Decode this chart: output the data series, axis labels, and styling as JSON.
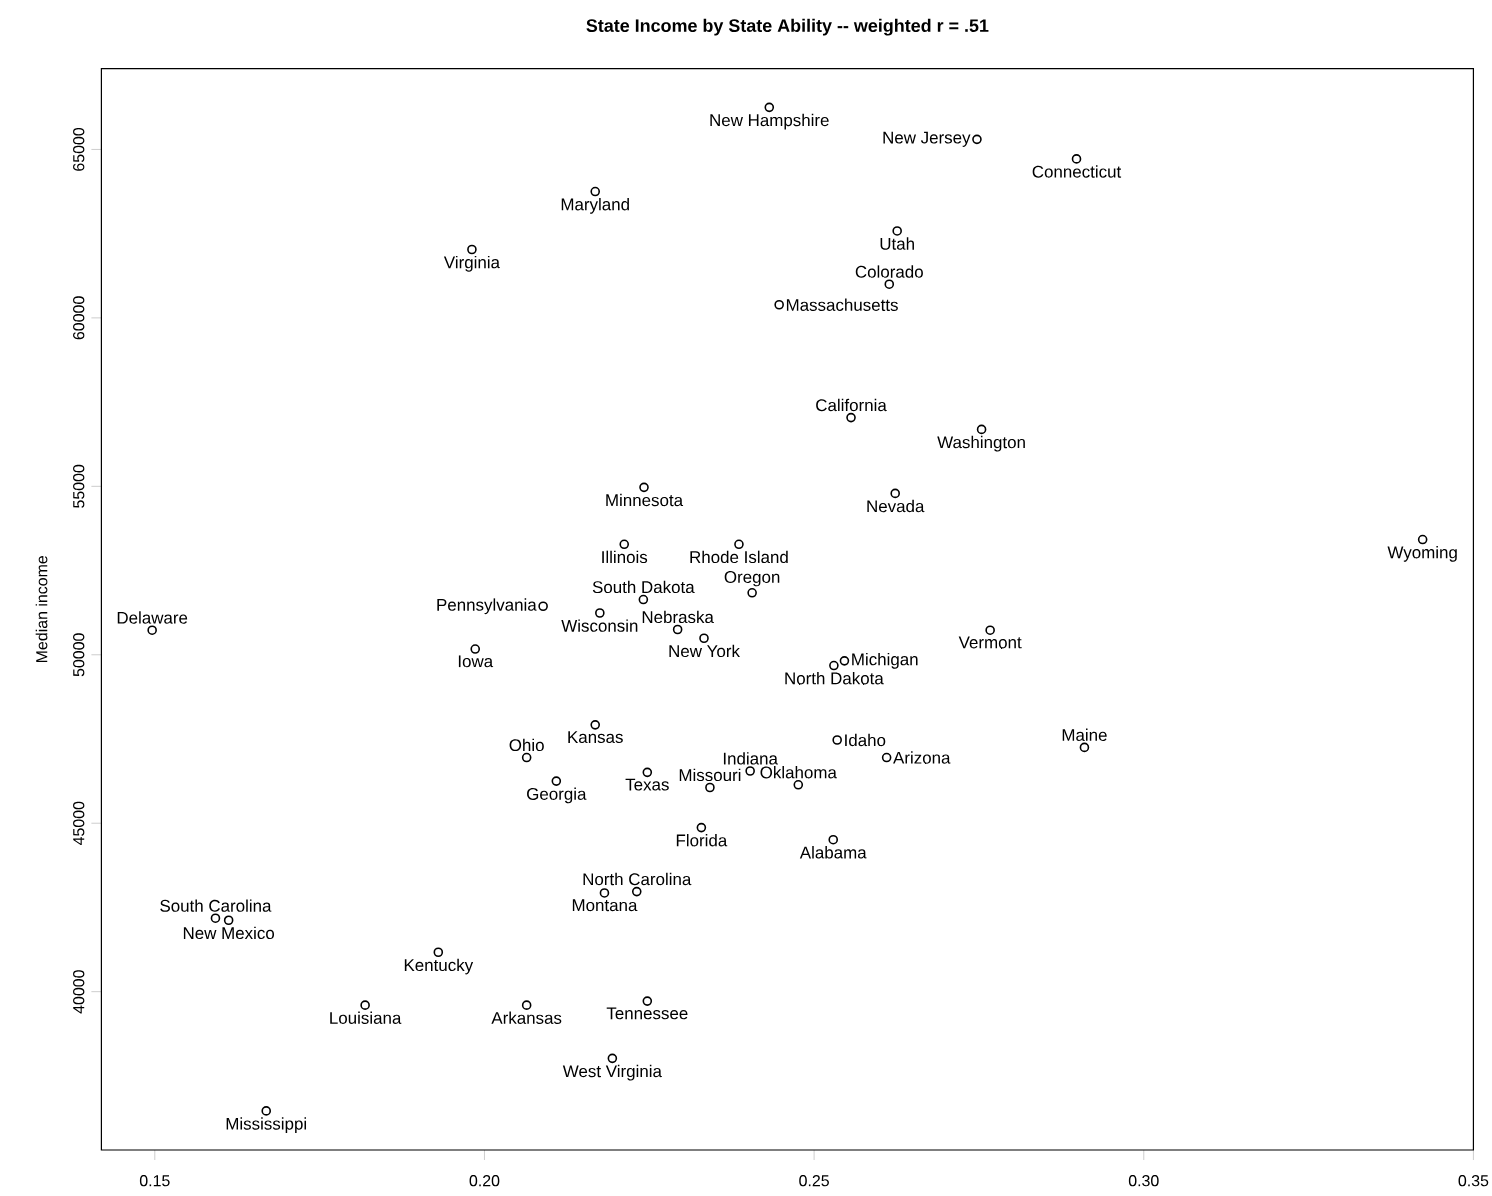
{
  "chart_data": {
    "type": "scatter",
    "title": "State Income by State Ability -- weighted r = .51",
    "ylabel": "Median income",
    "xlim": [
      0.1419,
      0.35
    ],
    "ylim": [
      35300,
      67400
    ],
    "xticks": [
      0.15,
      {
        "value": 0.2,
        "label": "0.20"
      },
      0.25,
      {
        "value": 0.3,
        "label": "0.30"
      },
      0.35
    ],
    "yticks": [
      40000,
      45000,
      50000,
      55000,
      60000,
      65000
    ],
    "marker": "circle",
    "series": [
      {
        "color": "#000000",
        "x": [
          0.2168,
          0.1981,
          0.2242,
          0.2212,
          0.2386,
          0.2241,
          0.2089,
          0.1496,
          0.2175,
          0.2293,
          0.2333,
          0.1986,
          0.2064,
          0.2168,
          0.2109,
          0.2247,
          0.2342,
          0.2403,
          0.2476,
          0.2329,
          0.2231,
          0.2182,
          0.1592,
          0.1612,
          0.193,
          0.1819,
          0.2064,
          0.2247,
          0.2194,
          0.1669,
          0.2767,
          0.2546,
          0.253,
          0.2535,
          0.261,
          0.291,
          0.2529,
          0.2432,
          0.2747,
          0.2898,
          0.2626,
          0.2614,
          0.2447,
          0.2556,
          0.2754,
          0.2623,
          0.3423,
          0.2406
        ],
        "values": [
          63750,
          62030,
          54970,
          53280,
          53280,
          51640,
          51440,
          50730,
          51240,
          50750,
          50490,
          50170,
          46950,
          47920,
          46250,
          46510,
          46060,
          46550,
          46140,
          44870,
          42970,
          42930,
          42180,
          42120,
          41170,
          39600,
          39600,
          39720,
          38020,
          36460,
          50730,
          49820,
          49680,
          47470,
          46950,
          47250,
          44510,
          66250,
          65300,
          64720,
          62580,
          61000,
          60390,
          57040,
          56690,
          54790,
          53420,
          51840
        ]
      }
    ],
    "annotations": [
      {
        "text": "Maryland",
        "x": 0.2168,
        "y": 63750
      },
      {
        "text": "Virginia",
        "x": 0.1981,
        "y": 62030
      },
      {
        "text": "Minnesota",
        "x": 0.2242,
        "y": 54970
      },
      {
        "text": "Illinois",
        "x": 0.2212,
        "y": 53280
      },
      {
        "text": "Rhode Island",
        "x": 0.2386,
        "y": 53280
      },
      {
        "text": "South Dakota",
        "x": 0.2241,
        "y": 51640
      },
      {
        "text": "Pennsylvania",
        "x": 0.2089,
        "y": 51440
      },
      {
        "text": "Delaware",
        "x": 0.1496,
        "y": 50730
      },
      {
        "text": "Wisconsin",
        "x": 0.2175,
        "y": 51240
      },
      {
        "text": "Nebraska",
        "x": 0.2293,
        "y": 50750
      },
      {
        "text": "New York",
        "x": 0.2333,
        "y": 50490
      },
      {
        "text": "Iowa",
        "x": 0.1986,
        "y": 50170
      },
      {
        "text": "Ohio",
        "x": 0.2064,
        "y": 46950
      },
      {
        "text": "Kansas",
        "x": 0.2168,
        "y": 47920
      },
      {
        "text": "Georgia",
        "x": 0.2109,
        "y": 46250
      },
      {
        "text": "Texas",
        "x": 0.2247,
        "y": 46510
      },
      {
        "text": "Missouri",
        "x": 0.2342,
        "y": 46060
      },
      {
        "text": "Indiana",
        "x": 0.2403,
        "y": 46550
      },
      {
        "text": "Oklahoma",
        "x": 0.2476,
        "y": 46140
      },
      {
        "text": "Florida",
        "x": 0.2329,
        "y": 44870
      },
      {
        "text": "North Carolina",
        "x": 0.2231,
        "y": 42970
      },
      {
        "text": "Montana",
        "x": 0.2182,
        "y": 42930
      },
      {
        "text": "South Carolina",
        "x": 0.1592,
        "y": 42180
      },
      {
        "text": "New Mexico",
        "x": 0.1612,
        "y": 42120
      },
      {
        "text": "Kentucky",
        "x": 0.193,
        "y": 41170
      },
      {
        "text": "Louisiana",
        "x": 0.1819,
        "y": 39600
      },
      {
        "text": "Arkansas",
        "x": 0.2064,
        "y": 39600
      },
      {
        "text": "Tennessee",
        "x": 0.2247,
        "y": 39720
      },
      {
        "text": "West Virginia",
        "x": 0.2194,
        "y": 38020
      },
      {
        "text": "Mississippi",
        "x": 0.1669,
        "y": 36460
      },
      {
        "text": "Vermont",
        "x": 0.2767,
        "y": 50730
      },
      {
        "text": "Michigan",
        "x": 0.2546,
        "y": 49820
      },
      {
        "text": "North Dakota",
        "x": 0.253,
        "y": 49680
      },
      {
        "text": "Idaho",
        "x": 0.2535,
        "y": 47470
      },
      {
        "text": "Arizona",
        "x": 0.261,
        "y": 46950
      },
      {
        "text": "Maine",
        "x": 0.291,
        "y": 47250
      },
      {
        "text": "Alabama",
        "x": 0.2529,
        "y": 44510
      },
      {
        "text": "New Hampshire",
        "x": 0.2432,
        "y": 66250
      },
      {
        "text": "New Jersey",
        "x": 0.2747,
        "y": 65300
      },
      {
        "text": "Connecticut",
        "x": 0.2898,
        "y": 64720
      },
      {
        "text": "Utah",
        "x": 0.2626,
        "y": 62580
      },
      {
        "text": "Colorado",
        "x": 0.2614,
        "y": 61000
      },
      {
        "text": "Massachusetts",
        "x": 0.2447,
        "y": 60390
      },
      {
        "text": "California",
        "x": 0.2556,
        "y": 57040
      },
      {
        "text": "Washington",
        "x": 0.2754,
        "y": 56690
      },
      {
        "text": "Nevada",
        "x": 0.2623,
        "y": 54790
      },
      {
        "text": "Wyoming",
        "x": 0.3423,
        "y": 53420
      },
      {
        "text": "Oregon",
        "x": 0.2406,
        "y": 51840
      }
    ]
  }
}
